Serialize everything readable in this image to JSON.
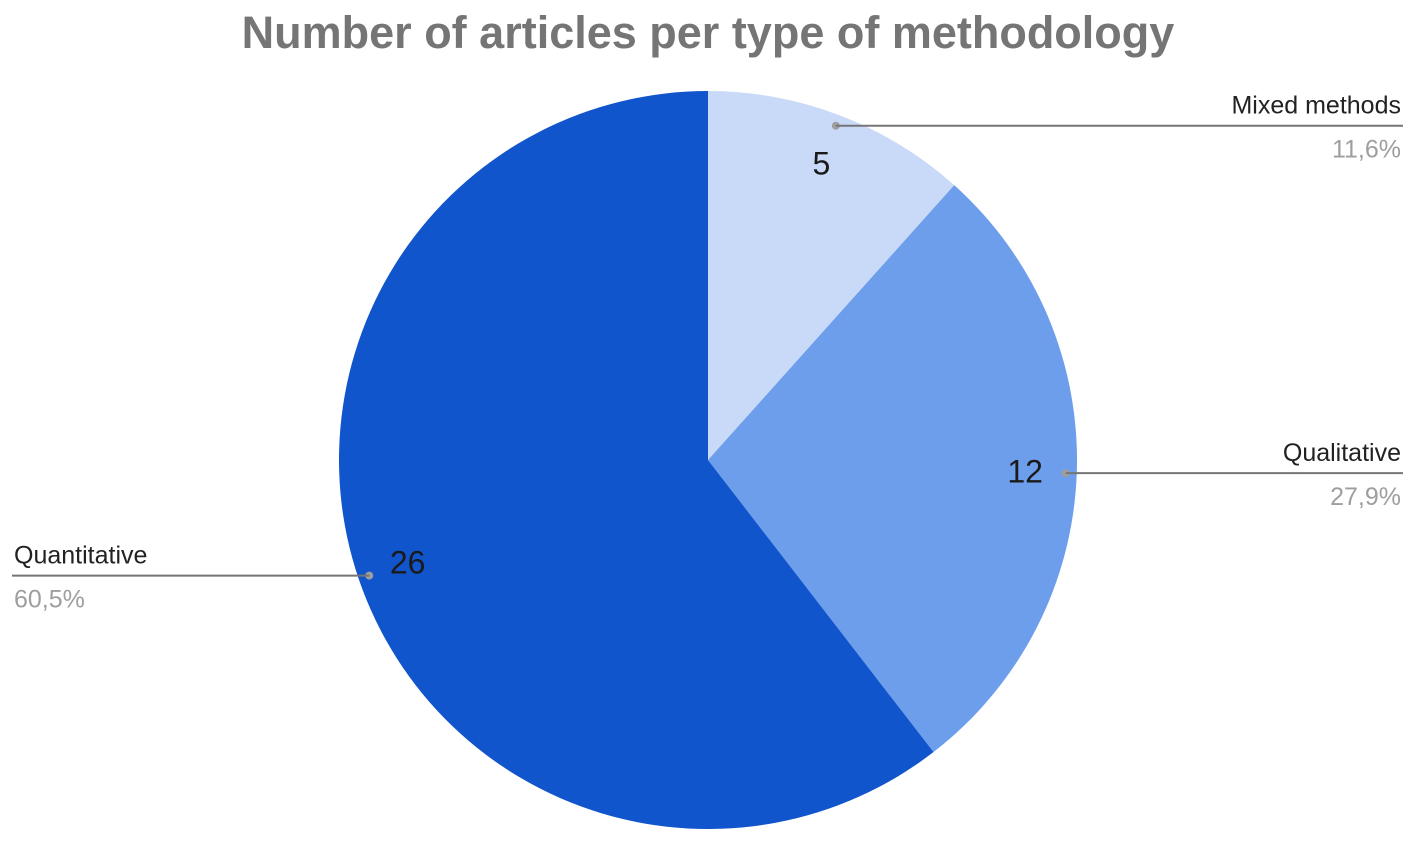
{
  "chart_data": {
    "type": "pie",
    "title": "Number of articles per type of methodology",
    "slices": [
      {
        "label": "Mixed methods",
        "value": 5,
        "value_label": "5",
        "percent_label": "11,6%",
        "color": "#c9daf8"
      },
      {
        "label": "Qualitative",
        "value": 12,
        "value_label": "12",
        "percent_label": "27,9%",
        "color": "#6d9eeb"
      },
      {
        "label": "Quantitative",
        "value": 26,
        "value_label": "26",
        "percent_label": "60,5%",
        "color": "#1155cc"
      }
    ],
    "start_angle_deg": 0,
    "direction": "clockwise",
    "legend": "callout labels beside slices"
  }
}
